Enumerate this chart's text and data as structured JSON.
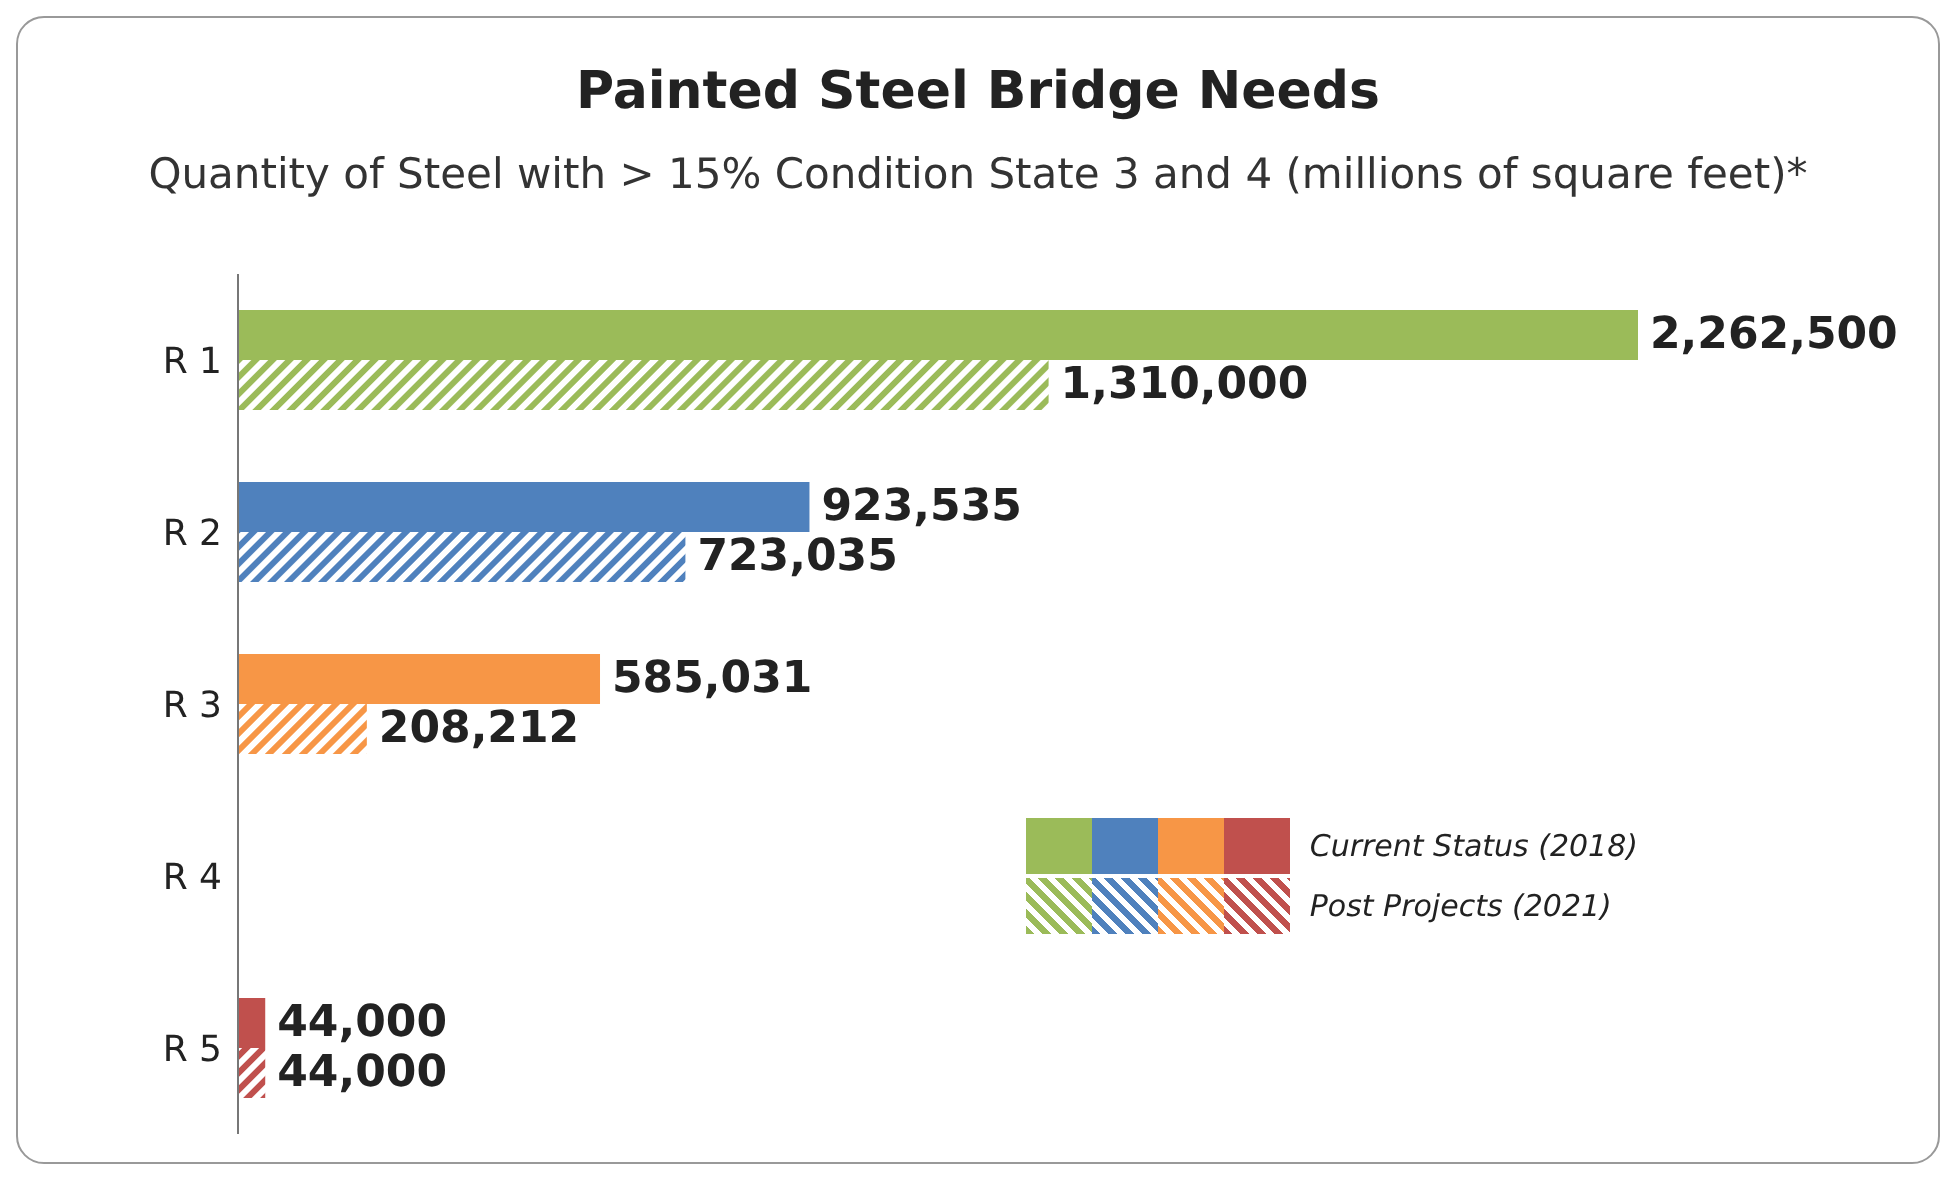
{
  "chart_data": {
    "type": "bar",
    "orientation": "horizontal",
    "title": "Painted Steel Bridge Needs",
    "subtitle": "Quantity of Steel with > 15% Condition State 3 and 4 (millions of square feet)*",
    "categories": [
      "R 1",
      "R 2",
      "R 3",
      "R 4",
      "R 5"
    ],
    "tick_labels": "y",
    "legend": "right",
    "series": [
      {
        "name": "Current Status (2018)",
        "colors": [
          "#9bbb59",
          "#4f81bd",
          "#f79646",
          "#c0504d",
          "#c0504d"
        ],
        "values": [
          2262500,
          923535,
          585031,
          null,
          44000
        ],
        "value_labels": [
          "2,262,500",
          "923,535",
          "585,031",
          null,
          "44,000"
        ]
      },
      {
        "name": "Post Projects (2021)",
        "colors": [
          "#9bbb59",
          "#4f81bd",
          "#f79646",
          "#c0504d",
          "#c0504d"
        ],
        "values": [
          1310000,
          723035,
          208212,
          null,
          44000
        ],
        "value_labels": [
          "1,310,000",
          "723,035",
          "208,212",
          null,
          "44,000"
        ]
      }
    ]
  }
}
